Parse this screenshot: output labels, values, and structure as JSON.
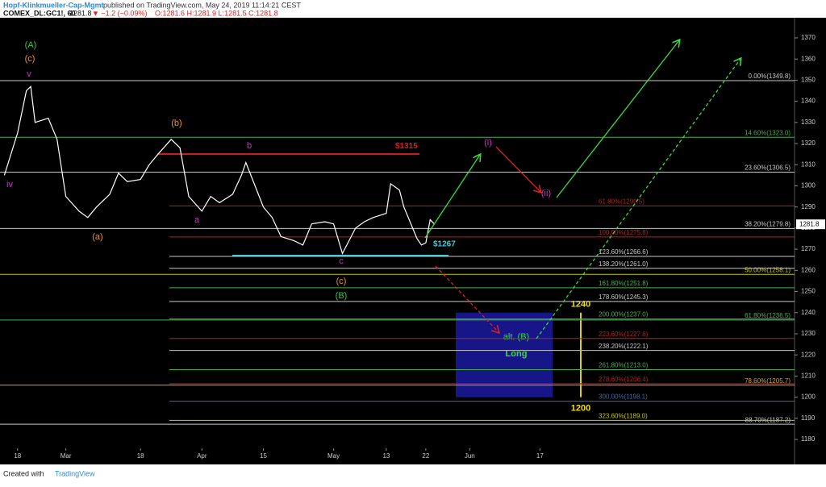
{
  "chart_data": {
    "type": "line",
    "header": {
      "publisher": "Hopf-Klinkmueller-Cap-Mgmt",
      "published": "published on TradingView.com, May 24, 2019 11:14:21 CEST",
      "symbol": "COMEX_DL:GC1!, 60",
      "last": "1281.8",
      "change": "▼ −1.2 (−0.09%)",
      "ohlc": "O:1281.6 H:1281.9 L:1281.5 C:1281.8"
    },
    "footer": {
      "created": "Created with",
      "brand": "TradingView"
    },
    "x": [
      "2019-02-15",
      "2019-02-18",
      "2019-02-20",
      "2019-02-21",
      "2019-02-22",
      "2019-02-25",
      "2019-02-27",
      "2019-03-01",
      "2019-03-04",
      "2019-03-06",
      "2019-03-08",
      "2019-03-11",
      "2019-03-13",
      "2019-03-15",
      "2019-03-18",
      "2019-03-20",
      "2019-03-22",
      "2019-03-25",
      "2019-03-27",
      "2019-03-29",
      "2019-04-01",
      "2019-04-03",
      "2019-04-05",
      "2019-04-08",
      "2019-04-10",
      "2019-04-11",
      "2019-04-15",
      "2019-04-17",
      "2019-04-19",
      "2019-04-22",
      "2019-04-24",
      "2019-04-26",
      "2019-04-29",
      "2019-05-01",
      "2019-05-03",
      "2019-05-06",
      "2019-05-08",
      "2019-05-10",
      "2019-05-13",
      "2019-05-14",
      "2019-05-16",
      "2019-05-17",
      "2019-05-20",
      "2019-05-21",
      "2019-05-22",
      "2019-05-23",
      "2019-05-24"
    ],
    "series": [
      {
        "color": "#ffffff",
        "values": [
          1305,
          1325,
          1345,
          1347,
          1330,
          1332,
          1322,
          1295,
          1288,
          1285,
          1290,
          1296,
          1306,
          1302,
          1303,
          1310,
          1315,
          1322,
          1318,
          1295,
          1288,
          1295,
          1292,
          1296,
          1305,
          1311,
          1290,
          1285,
          1276,
          1274,
          1272,
          1282,
          1283,
          1282,
          1268,
          1280,
          1283,
          1285,
          1287,
          1301,
          1298,
          1290,
          1275,
          1272,
          1273,
          1284,
          1281.8
        ]
      }
    ],
    "xlim": [
      "2019-02-14",
      "2019-08-14"
    ],
    "xticks": [
      {
        "value": "2019-02-18",
        "label": "18"
      },
      {
        "value": "2019-03-01",
        "label": "Mar"
      },
      {
        "value": "2019-03-18",
        "label": "18"
      },
      {
        "value": "2019-04-01",
        "label": "Apr"
      },
      {
        "value": "2019-04-15",
        "label": "15"
      },
      {
        "value": "2019-05-01",
        "label": "May"
      },
      {
        "value": "2019-05-13",
        "label": "13"
      },
      {
        "value": "2019-05-22",
        "label": "22"
      },
      {
        "value": "2019-06-01",
        "label": "Jun"
      },
      {
        "value": "2019-06-17",
        "label": "17"
      }
    ],
    "ylim": [
      1176,
      1377
    ],
    "yticks": [
      1180,
      1190,
      1200,
      1210,
      1220,
      1230,
      1240,
      1250,
      1260,
      1270,
      1280,
      1290,
      1300,
      1310,
      1320,
      1330,
      1340,
      1350,
      1360,
      1370
    ],
    "retracements": [
      {
        "value": 1349.8,
        "label": "0.00%(1349.8)",
        "color": "#c8c8c8"
      },
      {
        "value": 1323.0,
        "label": "14.60%(1323.0)",
        "color": "#4caf50"
      },
      {
        "value": 1306.5,
        "label": "23.60%(1306.5)",
        "color": "#c8c8c8"
      },
      {
        "value": 1279.8,
        "label": "38.20%(1279.8)",
        "color": "#c8c8c8"
      },
      {
        "value": 1258.1,
        "label": "50.00%(1258.1)",
        "color": "#c8c800"
      },
      {
        "value": 1236.5,
        "label": "61.80%(1236.5)",
        "color": "#4caf50"
      },
      {
        "value": 1205.7,
        "label": "78.60%(1205.7)",
        "color": "#e0a020"
      },
      {
        "value": 1187.2,
        "label": "88.70%(1187.2)",
        "color": "#c8c8c8"
      }
    ],
    "extensions": [
      {
        "value": 1290.5,
        "label": "61.80%(1290.5)",
        "color": "#b22222"
      },
      {
        "value": 1275.8,
        "label": "100.00%(1275.8)",
        "color": "#b22222"
      },
      {
        "value": 1266.6,
        "label": "123.60%(1266.6)",
        "color": "#c8c8c8"
      },
      {
        "value": 1261.0,
        "label": "138.20%(1261.0)",
        "color": "#c8c8c8"
      },
      {
        "value": 1251.8,
        "label": "161.80%(1251.8)",
        "color": "#4caf50"
      },
      {
        "value": 1245.3,
        "label": "178.60%(1245.3)",
        "color": "#c8c8c8"
      },
      {
        "value": 1237.0,
        "label": "200.00%(1237.0)",
        "color": "#4caf50"
      },
      {
        "value": 1227.8,
        "label": "223.60%(1227.8)",
        "color": "#b22222"
      },
      {
        "value": 1222.1,
        "label": "238.20%(1222.1)",
        "color": "#c8c8c8"
      },
      {
        "value": 1213.0,
        "label": "261.80%(1213.0)",
        "color": "#4caf50"
      },
      {
        "value": 1206.4,
        "label": "278.60%(1206.4)",
        "color": "#b22222"
      },
      {
        "value": 1198.1,
        "label": "300.00%(1198.1)",
        "color": "#3a6ea5"
      },
      {
        "value": 1189.0,
        "label": "323.60%(1189.0)",
        "color": "#c8c800"
      }
    ],
    "targets": [
      {
        "value": 1315,
        "label": "$1315",
        "color": "#d22020"
      },
      {
        "value": 1267,
        "label": "$1267",
        "color": "#40d0e0"
      }
    ],
    "zone": {
      "top": 1240,
      "bottom": 1200,
      "color": "#1a1aa0",
      "note": "alt. (B)",
      "action": "Long"
    },
    "waves": [
      {
        "label": "(A)",
        "color": "#3cc83c"
      },
      {
        "label": "(c)",
        "color": "#f09020"
      },
      {
        "label": "v",
        "color": "#d030d0"
      },
      {
        "label": "iv",
        "color": "#d030d0"
      },
      {
        "label": "(a)",
        "color": "#f09020"
      },
      {
        "label": "(b)",
        "color": "#f09020"
      },
      {
        "label": "a",
        "color": "#d030d0"
      },
      {
        "label": "b",
        "color": "#d030d0"
      },
      {
        "label": "c",
        "color": "#d030d0"
      },
      {
        "label": "(c)",
        "color": "#f09020"
      },
      {
        "label": "(B)",
        "color": "#3cc83c"
      },
      {
        "label": "(i)",
        "color": "#d030d0"
      },
      {
        "label": "(ii)",
        "color": "#d030d0"
      }
    ]
  }
}
